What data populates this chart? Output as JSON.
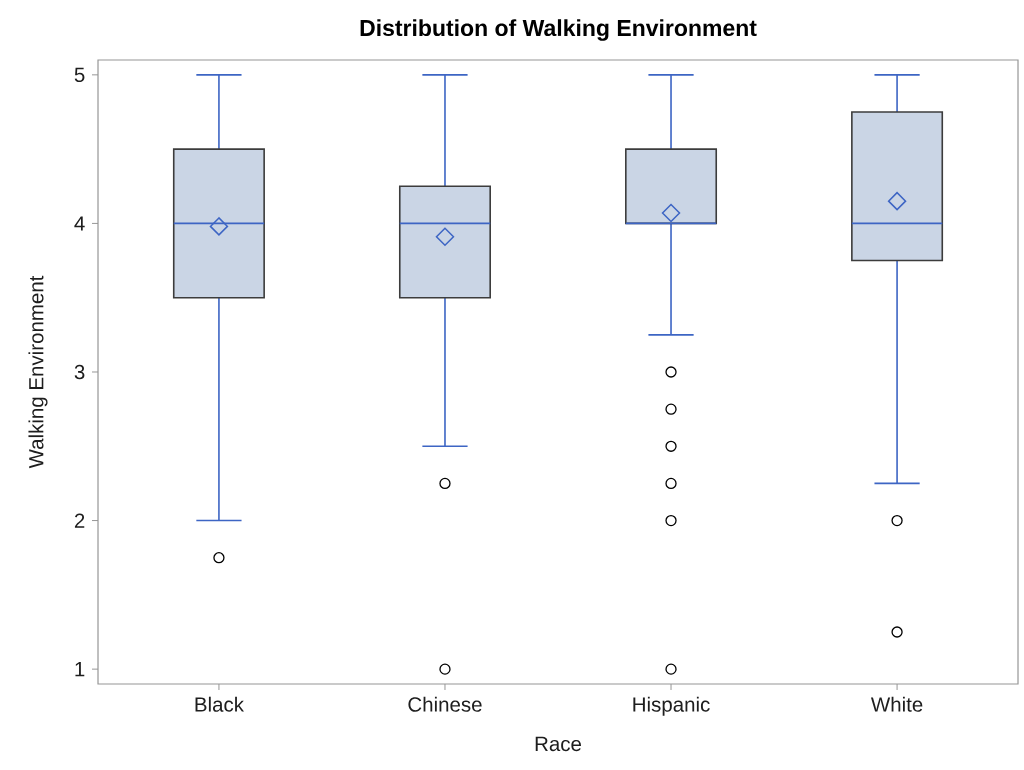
{
  "chart_data": {
    "type": "box",
    "title": "Distribution of Walking Environment",
    "xlabel": "Race",
    "ylabel": "Walking Environment",
    "categories": [
      "Black",
      "Chinese",
      "Hispanic",
      "White"
    ],
    "color": "#cad5e5",
    "boxes": [
      {
        "low": 2,
        "q1": 3.5,
        "median": 4,
        "q3": 4.5,
        "high": 5,
        "mean": 3.98,
        "outliers": [
          1.75
        ]
      },
      {
        "low": 2.5,
        "q1": 3.5,
        "median": 4,
        "q3": 4.25,
        "high": 5,
        "mean": 3.91,
        "outliers": [
          2.25,
          1
        ]
      },
      {
        "low": 3.25,
        "q1": 4,
        "median": 4,
        "q3": 4.5,
        "high": 5,
        "mean": 4.07,
        "outliers": [
          3,
          2.75,
          2.5,
          2.25,
          2,
          1
        ]
      },
      {
        "low": 2.25,
        "q1": 3.75,
        "median": 4,
        "q3": 4.75,
        "high": 5,
        "mean": 4.15,
        "outliers": [
          2,
          1.25
        ]
      }
    ],
    "ylim": [
      0.9,
      5.1
    ],
    "yticks": [
      1,
      2,
      3,
      4,
      5
    ]
  }
}
